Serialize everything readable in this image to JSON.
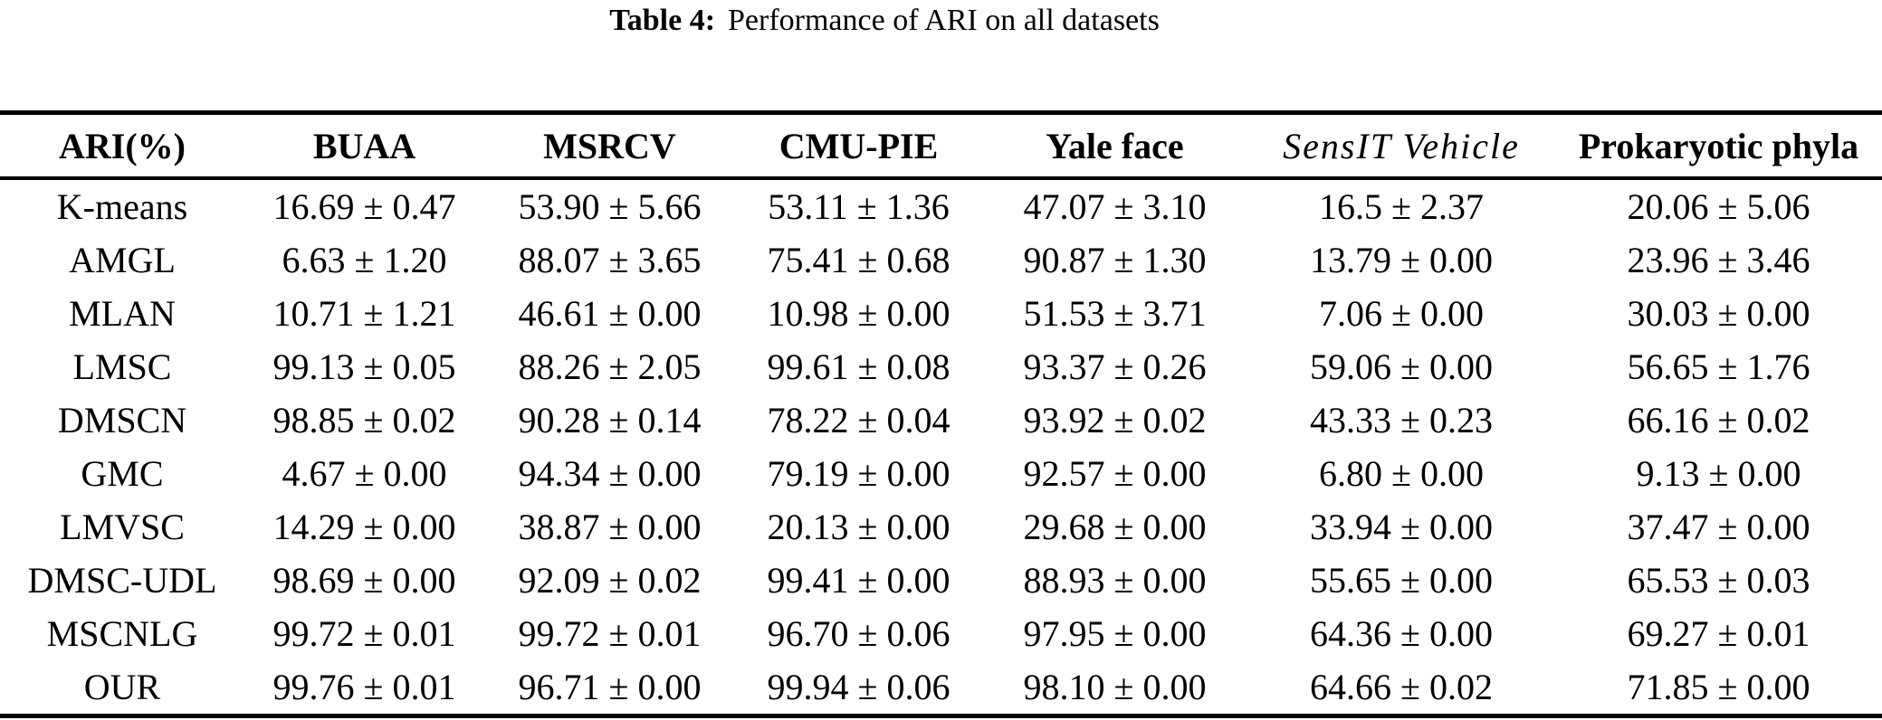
{
  "caption": {
    "label": "Table 4:",
    "text": "Performance of ARI on all datasets"
  },
  "table": {
    "columns": [
      "ARI(%)",
      "BUAA",
      "MSRCV",
      "CMU-PIE",
      "Yale face",
      "SensIT Vehicle",
      "Prokaryotic phyla"
    ],
    "rows": [
      {
        "method": "K-means",
        "values": [
          "16.69 ± 0.47",
          "53.90 ± 5.66",
          "53.11 ± 1.36",
          "47.07 ± 3.10",
          "16.5 ± 2.37",
          "20.06 ± 5.06"
        ]
      },
      {
        "method": "AMGL",
        "values": [
          "6.63 ± 1.20",
          "88.07 ± 3.65",
          "75.41 ± 0.68",
          "90.87 ± 1.30",
          "13.79 ± 0.00",
          "23.96 ± 3.46"
        ]
      },
      {
        "method": "MLAN",
        "values": [
          "10.71 ± 1.21",
          "46.61 ± 0.00",
          "10.98 ± 0.00",
          "51.53 ± 3.71",
          "7.06 ± 0.00",
          "30.03 ± 0.00"
        ]
      },
      {
        "method": "LMSC",
        "values": [
          "99.13 ± 0.05",
          "88.26 ± 2.05",
          "99.61 ± 0.08",
          "93.37 ± 0.26",
          "59.06 ± 0.00",
          "56.65 ± 1.76"
        ]
      },
      {
        "method": "DMSCN",
        "values": [
          "98.85 ± 0.02",
          "90.28 ± 0.14",
          "78.22 ± 0.04",
          "93.92 ± 0.02",
          "43.33 ± 0.23",
          "66.16 ± 0.02"
        ]
      },
      {
        "method": "GMC",
        "values": [
          "4.67 ± 0.00",
          "94.34 ± 0.00",
          "79.19 ± 0.00",
          "92.57 ± 0.00",
          "6.80 ± 0.00",
          "9.13 ± 0.00"
        ]
      },
      {
        "method": "LMVSC",
        "values": [
          "14.29 ± 0.00",
          "38.87 ± 0.00",
          "20.13 ± 0.00",
          "29.68 ± 0.00",
          "33.94 ± 0.00",
          "37.47 ± 0.00"
        ]
      },
      {
        "method": "DMSC-UDL",
        "values": [
          "98.69 ± 0.00",
          "92.09 ± 0.02",
          "99.41 ± 0.00",
          "88.93 ± 0.00",
          "55.65 ± 0.00",
          "65.53 ± 0.03"
        ]
      },
      {
        "method": "MSCNLG",
        "values": [
          "99.72 ± 0.01",
          "99.72 ± 0.01",
          "96.70 ± 0.06",
          "97.95 ± 0.00",
          "64.36 ± 0.00",
          "69.27 ± 0.01"
        ]
      },
      {
        "method": "OUR",
        "values": [
          "99.76 ± 0.01",
          "96.71 ± 0.00",
          "99.94 ± 0.06",
          "98.10 ± 0.00",
          "64.66 ± 0.02",
          "71.85 ± 0.00"
        ]
      }
    ]
  },
  "colors": {
    "text": "#000000",
    "background": "#ffffff",
    "rule": "#000000"
  }
}
